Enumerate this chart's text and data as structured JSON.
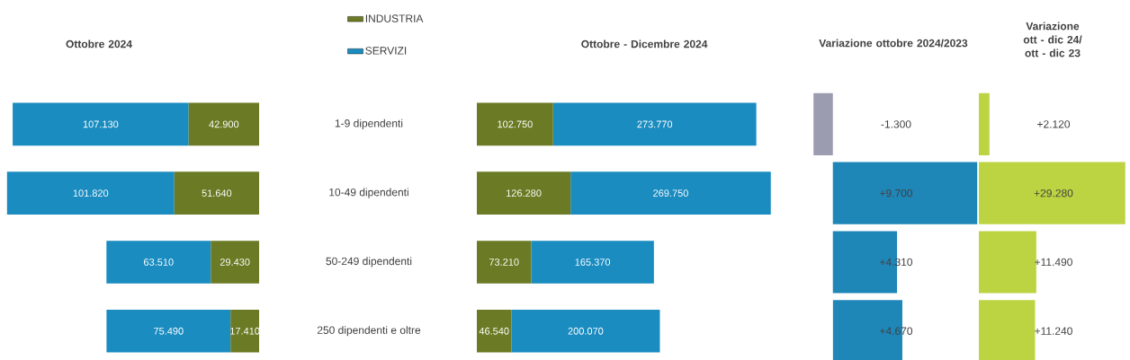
{
  "chart_data": [
    {
      "type": "bar",
      "orientation": "horizontal",
      "stacked": true,
      "title": "Ottobre 2024",
      "categories": [
        "1-9 dipendenti",
        "10-49 dipendenti",
        "50-249 dipendenti",
        "250 dipendenti e oltre"
      ],
      "series": [
        {
          "name": "INDUSTRIA",
          "color": "#6b7a24",
          "values": [
            42900,
            51640,
            29430,
            17410
          ],
          "value_labels": [
            "42.900",
            "51.640",
            "29.430",
            "17.410"
          ]
        },
        {
          "name": "SERVIZI",
          "color": "#1a8cc0",
          "values": [
            107130,
            101820,
            63510,
            75490
          ],
          "value_labels": [
            "107.130",
            "101.820",
            "63.510",
            "75.490"
          ]
        }
      ],
      "legend": "top right",
      "tick_labels": "y"
    },
    {
      "type": "bar",
      "orientation": "horizontal",
      "stacked": true,
      "title": "Ottobre  - Dicembre 2024",
      "categories": [
        null,
        null,
        null,
        null
      ],
      "series": [
        {
          "color": "#6b7a24",
          "values": [
            102750,
            126280,
            73210,
            46540
          ],
          "value_labels": [
            "102.750",
            "126.280",
            "73.210",
            "46.540"
          ]
        },
        {
          "color": "#1a8cc0",
          "values": [
            273770,
            269750,
            165370,
            200070
          ],
          "value_labels": [
            "273.770",
            "269.750",
            "165.370",
            "200.070"
          ]
        }
      ],
      "tick_labels": false
    },
    {
      "type": "bar",
      "orientation": "horizontal",
      "title": "Variazione ottobre 2024/2023",
      "categories": [
        null,
        null,
        null,
        null
      ],
      "values": [
        -1300,
        9700,
        4310,
        4670
      ],
      "colors": [
        "#9c9cb0",
        "#1f86b8",
        "#1f86b8",
        "#1f86b8"
      ],
      "value_labels": [
        "-1.300",
        "+9.700",
        "+4.310",
        "+4.670"
      ],
      "tick_labels": false
    },
    {
      "type": "bar",
      "orientation": "horizontal",
      "title": "Variazione ott - dic 24/ ott - dic 23",
      "categories": [
        null,
        null,
        null,
        null
      ],
      "values": [
        2120,
        29280,
        11490,
        11240
      ],
      "colors": [
        "#bcd442",
        "#bcd442",
        "#bcd442",
        "#bcd442"
      ],
      "value_labels": [
        "+2.120",
        "+29.280",
        "+11.490",
        "+11.240"
      ],
      "tick_labels": false
    }
  ]
}
